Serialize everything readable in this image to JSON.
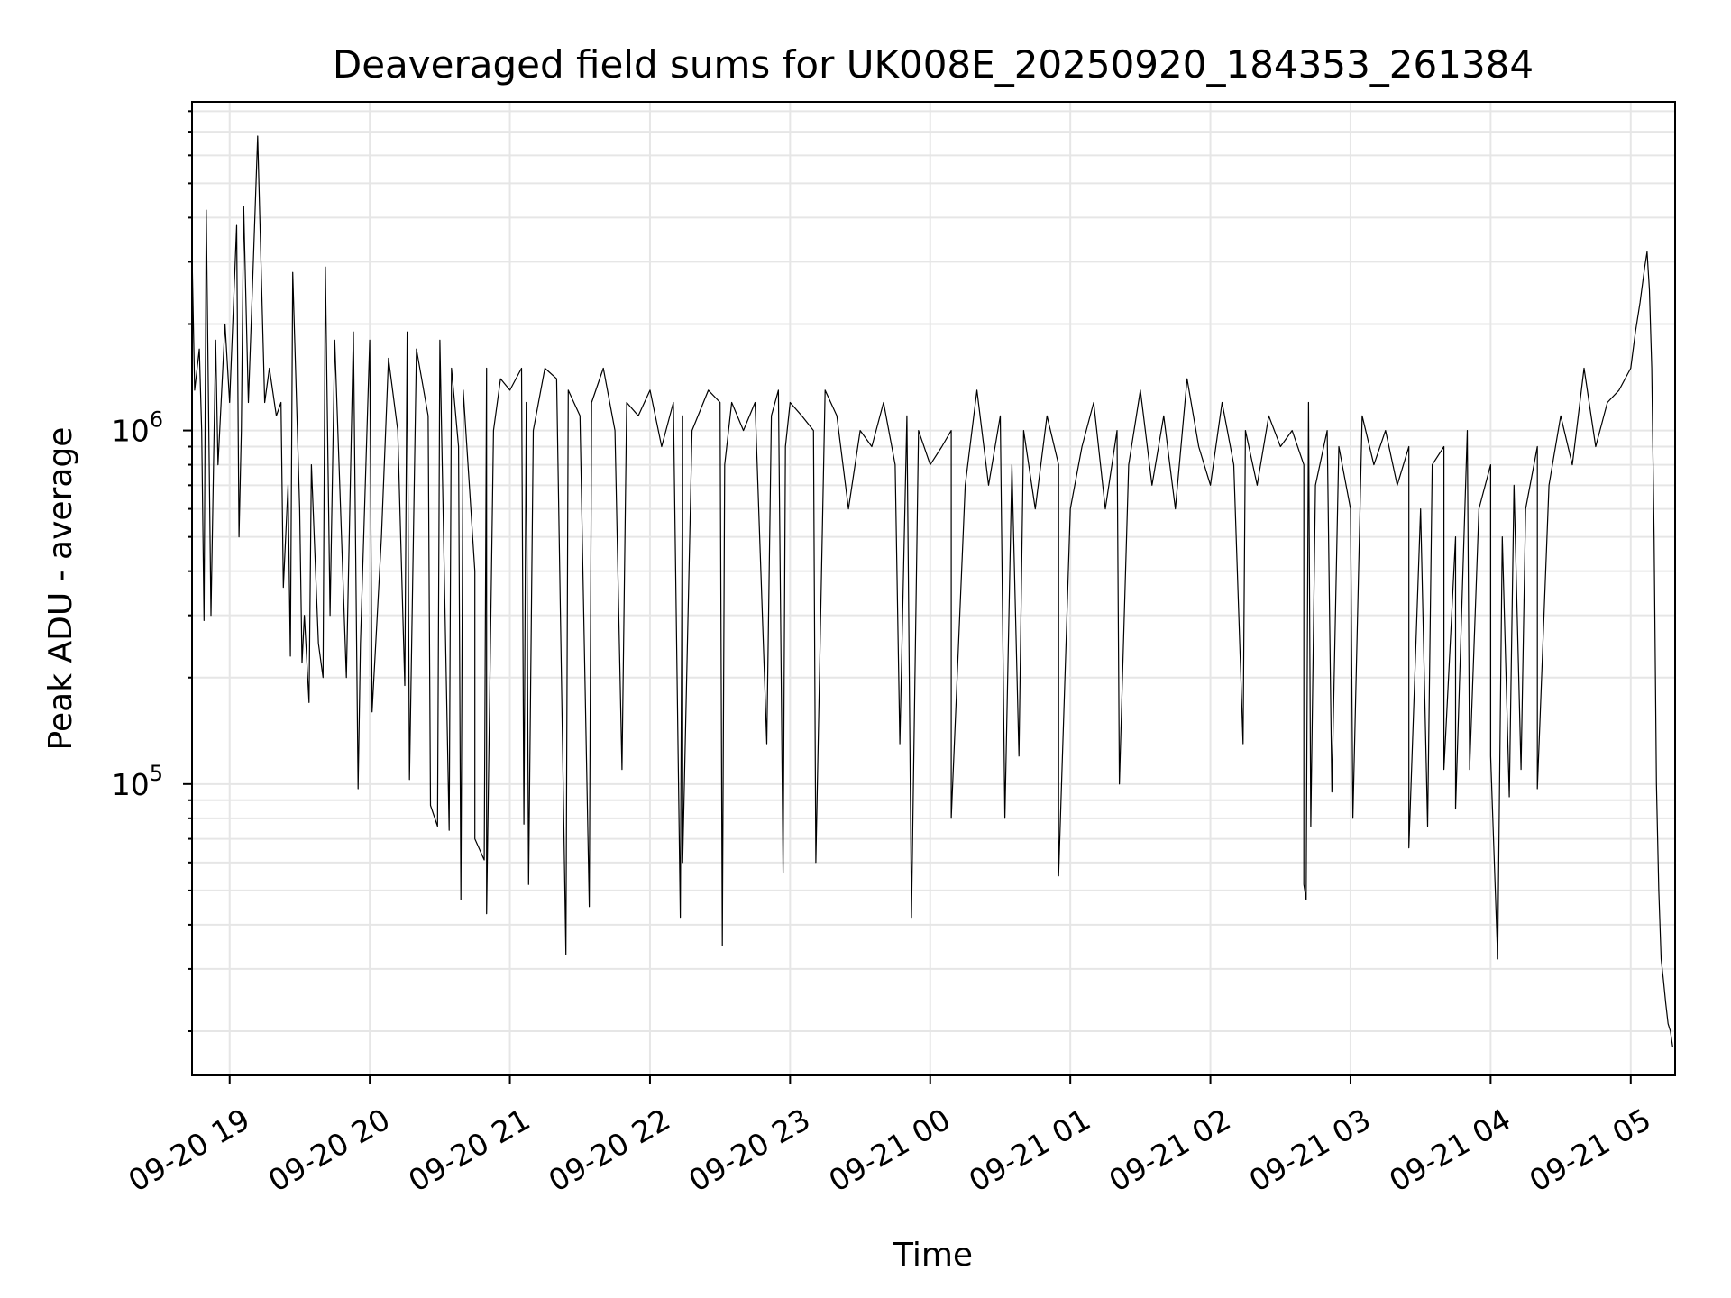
{
  "chart_data": {
    "type": "line",
    "title": "Deaveraged field sums for UK008E_20250920_184353_261384",
    "xlabel": "Time",
    "ylabel": "Peak ADU - average",
    "yscale": "log",
    "xlim": [
      "2025-09-20T18:43:53",
      "2025-09-21T05:19:00"
    ],
    "ylim": [
      15000,
      8500000
    ],
    "grid": true,
    "legend": "none",
    "line_color": "#000000",
    "x_ticks": [
      {
        "label": "09-20 19",
        "value": "2025-09-20T19:00:00"
      },
      {
        "label": "09-20 20",
        "value": "2025-09-20T20:00:00"
      },
      {
        "label": "09-20 21",
        "value": "2025-09-20T21:00:00"
      },
      {
        "label": "09-20 22",
        "value": "2025-09-20T22:00:00"
      },
      {
        "label": "09-20 23",
        "value": "2025-09-20T23:00:00"
      },
      {
        "label": "09-21 00",
        "value": "2025-09-21T00:00:00"
      },
      {
        "label": "09-21 01",
        "value": "2025-09-21T01:00:00"
      },
      {
        "label": "09-21 02",
        "value": "2025-09-21T02:00:00"
      },
      {
        "label": "09-21 03",
        "value": "2025-09-21T03:00:00"
      },
      {
        "label": "09-21 04",
        "value": "2025-09-21T04:00:00"
      },
      {
        "label": "09-21 05",
        "value": "2025-09-21T05:00:00"
      }
    ],
    "y_ticks": [
      {
        "base": "10",
        "exp": "5",
        "value": 100000
      },
      {
        "base": "10",
        "exp": "6",
        "value": 1000000
      }
    ],
    "series": [
      {
        "x": [
          "2025-09-20T18:44",
          "2025-09-20T18:45",
          "2025-09-20T18:47",
          "2025-09-20T18:48",
          "2025-09-20T18:50",
          "2025-09-20T18:52",
          "2025-09-20T18:54",
          "2025-09-20T18:55",
          "2025-09-20T18:58",
          "2025-09-20T19:00",
          "2025-09-20T19:03",
          "2025-09-20T19:05",
          "2025-09-20T19:06",
          "2025-09-20T19:08",
          "2025-09-20T19:10",
          "2025-09-20T19:12",
          "2025-09-20T19:15",
          "2025-09-20T19:17",
          "2025-09-20T19:20",
          "2025-09-20T19:22",
          "2025-09-20T19:25",
          "2025-09-20T19:27",
          "2025-09-20T19:30",
          "2025-09-20T19:32",
          "2025-09-20T19:35",
          "2025-09-20T19:38",
          "2025-09-20T19:41",
          "2025-09-20T19:43",
          "2025-09-20T19:45",
          "2025-09-20T19:50",
          "2025-09-20T19:53",
          "2025-09-20T19:56",
          "2025-09-20T20:00",
          "2025-09-20T20:05",
          "2025-09-20T20:08",
          "2025-09-20T20:12",
          "2025-09-20T20:16",
          "2025-09-20T20:20",
          "2025-09-20T20:25",
          "2025-09-20T20:30",
          "2025-09-20T20:35",
          "2025-09-20T20:38",
          "2025-09-20T20:40",
          "2025-09-20T20:45",
          "2025-09-20T20:50",
          "2025-09-20T20:53",
          "2025-09-20T20:56",
          "2025-09-20T21:00",
          "2025-09-20T21:05",
          "2025-09-20T21:07",
          "2025-09-20T21:10",
          "2025-09-20T21:15",
          "2025-09-20T21:20",
          "2025-09-20T21:25",
          "2025-09-20T21:30",
          "2025-09-20T21:35",
          "2025-09-20T21:40",
          "2025-09-20T21:45",
          "2025-09-20T21:50",
          "2025-09-20T21:55",
          "2025-09-20T22:00",
          "2025-09-20T22:05",
          "2025-09-20T22:10",
          "2025-09-20T22:14",
          "2025-09-20T22:18",
          "2025-09-20T22:25",
          "2025-09-20T22:30",
          "2025-09-20T22:32",
          "2025-09-20T22:35",
          "2025-09-20T22:40",
          "2025-09-20T22:45",
          "2025-09-20T22:52",
          "2025-09-20T22:55",
          "2025-09-20T22:58",
          "2025-09-20T23:00",
          "2025-09-20T23:05",
          "2025-09-20T23:10",
          "2025-09-20T23:15",
          "2025-09-20T23:20",
          "2025-09-20T23:25",
          "2025-09-20T23:30",
          "2025-09-20T23:35",
          "2025-09-20T23:40",
          "2025-09-20T23:45",
          "2025-09-20T23:50",
          "2025-09-20T23:55",
          "2025-09-21T00:00",
          "2025-09-21T00:05",
          "2025-09-21T00:09",
          "2025-09-21T00:15",
          "2025-09-21T00:20",
          "2025-09-21T00:25",
          "2025-09-21T00:30",
          "2025-09-21T00:35",
          "2025-09-21T00:40",
          "2025-09-21T00:45",
          "2025-09-21T00:50",
          "2025-09-21T00:55",
          "2025-09-21T01:00",
          "2025-09-21T01:05",
          "2025-09-21T01:10",
          "2025-09-21T01:15",
          "2025-09-21T01:20",
          "2025-09-21T01:25",
          "2025-09-21T01:30",
          "2025-09-21T01:35",
          "2025-09-21T01:40",
          "2025-09-21T01:45",
          "2025-09-21T01:50",
          "2025-09-21T01:55",
          "2025-09-21T02:00",
          "2025-09-21T02:05",
          "2025-09-21T02:10",
          "2025-09-21T02:15",
          "2025-09-21T02:20",
          "2025-09-21T02:25",
          "2025-09-21T02:30",
          "2025-09-21T02:35",
          "2025-09-21T02:40",
          "2025-09-21T02:42",
          "2025-09-21T02:45",
          "2025-09-21T02:50",
          "2025-09-21T02:55",
          "2025-09-21T03:00",
          "2025-09-21T03:05",
          "2025-09-21T03:10",
          "2025-09-21T03:15",
          "2025-09-21T03:20",
          "2025-09-21T03:25",
          "2025-09-21T03:30",
          "2025-09-21T03:35",
          "2025-09-21T03:40",
          "2025-09-21T03:45",
          "2025-09-21T03:50",
          "2025-09-21T03:55",
          "2025-09-21T04:00",
          "2025-09-21T04:05",
          "2025-09-21T04:10",
          "2025-09-21T04:15",
          "2025-09-21T04:20",
          "2025-09-21T04:25",
          "2025-09-21T04:30",
          "2025-09-21T04:35",
          "2025-09-21T04:40",
          "2025-09-21T04:45",
          "2025-09-21T04:50",
          "2025-09-21T04:55",
          "2025-09-21T05:00",
          "2025-09-21T05:02",
          "2025-09-21T05:04",
          "2025-09-21T05:06",
          "2025-09-21T05:07",
          "2025-09-21T05:08",
          "2025-09-21T05:09",
          "2025-09-21T05:10",
          "2025-09-21T05:11",
          "2025-09-21T05:12",
          "2025-09-21T05:13",
          "2025-09-21T05:14",
          "2025-09-21T05:15",
          "2025-09-21T05:16",
          "2025-09-21T05:17",
          "2025-09-21T05:18"
        ],
        "values": [
          2900000,
          1300000,
          1700000,
          1000000,
          4200000,
          300000,
          1800000,
          800000,
          2000000,
          1200000,
          3800000,
          1000000,
          4300000,
          1200000,
          2800000,
          6800000,
          1200000,
          1500000,
          1100000,
          1200000,
          700000,
          2800000,
          600000,
          300000,
          800000,
          250000,
          2900000,
          300000,
          1800000,
          200000,
          1900000,
          250000,
          1800000,
          500000,
          1600000,
          1000000,
          1900000,
          1700000,
          1100000,
          1800000,
          1500000,
          900000,
          1300000,
          400000,
          1500000,
          1000000,
          1400000,
          1300000,
          1500000,
          1200000,
          1000000,
          1500000,
          1400000,
          1300000,
          1100000,
          1200000,
          1500000,
          1000000,
          1200000,
          1100000,
          1300000,
          900000,
          1200000,
          1100000,
          1000000,
          1300000,
          1200000,
          800000,
          1200000,
          1000000,
          1200000,
          1100000,
          1300000,
          900000,
          1200000,
          1100000,
          1000000,
          1300000,
          1100000,
          600000,
          1000000,
          900000,
          1200000,
          800000,
          1100000,
          1000000,
          800000,
          900000,
          1000000,
          700000,
          1300000,
          700000,
          1100000,
          800000,
          1000000,
          600000,
          1100000,
          800000,
          600000,
          900000,
          1200000,
          600000,
          1000000,
          800000,
          1300000,
          700000,
          1100000,
          600000,
          1400000,
          900000,
          700000,
          1200000,
          800000,
          1000000,
          700000,
          1100000,
          900000,
          1000000,
          800000,
          1200000,
          700000,
          1000000,
          900000,
          600000,
          1100000,
          800000,
          1000000,
          700000,
          900000,
          600000,
          800000,
          900000,
          500000,
          1000000,
          600000,
          800000,
          500000,
          700000,
          600000,
          900000,
          700000,
          1100000,
          800000,
          1500000,
          900000,
          1200000,
          1300000,
          1500000,
          1900000,
          2300000,
          2900000,
          3200000,
          2500000,
          1500000,
          500000,
          100000,
          50000,
          32000,
          28000,
          24000,
          21000,
          20000,
          18000
        ],
        "drops": [
          {
            "x": "2025-09-20T18:49",
            "y": 290000
          },
          {
            "x": "2025-09-20T19:04",
            "y": 500000
          },
          {
            "x": "2025-09-20T19:23",
            "y": 360000
          },
          {
            "x": "2025-09-20T19:26",
            "y": 230000
          },
          {
            "x": "2025-09-20T19:31",
            "y": 220000
          },
          {
            "x": "2025-09-20T19:34",
            "y": 170000
          },
          {
            "x": "2025-09-20T19:40",
            "y": 200000
          },
          {
            "x": "2025-09-20T19:55",
            "y": 97000
          },
          {
            "x": "2025-09-20T20:01",
            "y": 160000
          },
          {
            "x": "2025-09-20T20:15",
            "y": 190000
          },
          {
            "x": "2025-09-20T20:17",
            "y": 103000
          },
          {
            "x": "2025-09-20T20:26",
            "y": 87000
          },
          {
            "x": "2025-09-20T20:29",
            "y": 76000
          },
          {
            "x": "2025-09-20T20:34",
            "y": 74000
          },
          {
            "x": "2025-09-20T20:39",
            "y": 47000
          },
          {
            "x": "2025-09-20T20:45",
            "y": 70000
          },
          {
            "x": "2025-09-20T20:49",
            "y": 61000
          },
          {
            "x": "2025-09-20T20:50",
            "y": 43000
          },
          {
            "x": "2025-09-20T21:06",
            "y": 77000
          },
          {
            "x": "2025-09-20T21:08",
            "y": 52000
          },
          {
            "x": "2025-09-20T21:24",
            "y": 33000
          },
          {
            "x": "2025-09-20T21:34",
            "y": 45000
          },
          {
            "x": "2025-09-20T21:48",
            "y": 110000
          },
          {
            "x": "2025-09-20T22:13",
            "y": 42000
          },
          {
            "x": "2025-09-20T22:14",
            "y": 60000
          },
          {
            "x": "2025-09-20T22:31",
            "y": 35000
          },
          {
            "x": "2025-09-20T22:50",
            "y": 130000
          },
          {
            "x": "2025-09-20T22:57",
            "y": 56000
          },
          {
            "x": "2025-09-20T23:11",
            "y": 60000
          },
          {
            "x": "2025-09-20T23:47",
            "y": 130000
          },
          {
            "x": "2025-09-20T23:52",
            "y": 42000
          },
          {
            "x": "2025-09-21T00:09",
            "y": 80000
          },
          {
            "x": "2025-09-21T00:32",
            "y": 80000
          },
          {
            "x": "2025-09-21T00:38",
            "y": 120000
          },
          {
            "x": "2025-09-21T00:55",
            "y": 55000
          },
          {
            "x": "2025-09-21T01:21",
            "y": 100000
          },
          {
            "x": "2025-09-21T02:14",
            "y": 130000
          },
          {
            "x": "2025-09-21T02:40",
            "y": 52000
          },
          {
            "x": "2025-09-21T02:41",
            "y": 47000
          },
          {
            "x": "2025-09-21T02:43",
            "y": 76000
          },
          {
            "x": "2025-09-21T02:52",
            "y": 95000
          },
          {
            "x": "2025-09-21T03:01",
            "y": 80000
          },
          {
            "x": "2025-09-21T03:25",
            "y": 66000
          },
          {
            "x": "2025-09-21T03:33",
            "y": 76000
          },
          {
            "x": "2025-09-21T03:40",
            "y": 110000
          },
          {
            "x": "2025-09-21T03:45",
            "y": 85000
          },
          {
            "x": "2025-09-21T03:51",
            "y": 110000
          },
          {
            "x": "2025-09-21T04:00",
            "y": 120000
          },
          {
            "x": "2025-09-21T04:03",
            "y": 32000
          },
          {
            "x": "2025-09-21T04:08",
            "y": 92000
          },
          {
            "x": "2025-09-21T04:13",
            "y": 110000
          },
          {
            "x": "2025-09-21T04:20",
            "y": 97000
          }
        ]
      }
    ]
  }
}
